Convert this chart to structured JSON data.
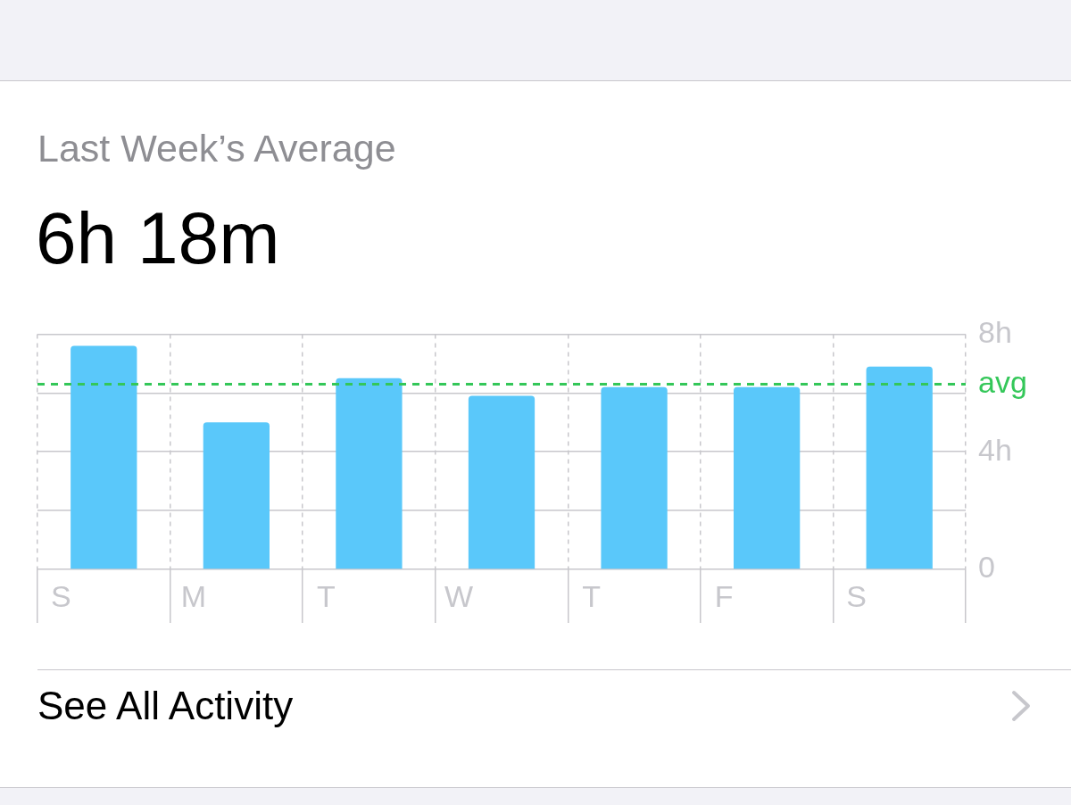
{
  "chart_data": {
    "type": "bar",
    "title": "Last Week’s Average",
    "subtitle": "6h 18m",
    "categories": [
      "S",
      "M",
      "T",
      "W",
      "T",
      "F",
      "S"
    ],
    "values": [
      7.6,
      5.0,
      6.5,
      5.9,
      6.2,
      6.2,
      6.9
    ],
    "color": "#5ac8fa",
    "ylim": [
      0,
      8
    ],
    "yticks": [
      {
        "value": 0,
        "label": "0"
      },
      {
        "value": 2,
        "label": null
      },
      {
        "value": 4,
        "label": "4h"
      },
      {
        "value": 6,
        "label": null
      },
      {
        "value": 8,
        "label": "8h"
      }
    ],
    "grid": true,
    "ref_lines": [
      {
        "axis": "y",
        "value": 6.3,
        "label": "avg",
        "color": "#34c759",
        "line_style": "dashed"
      }
    ],
    "annotations": [
      "See All Activity"
    ]
  }
}
